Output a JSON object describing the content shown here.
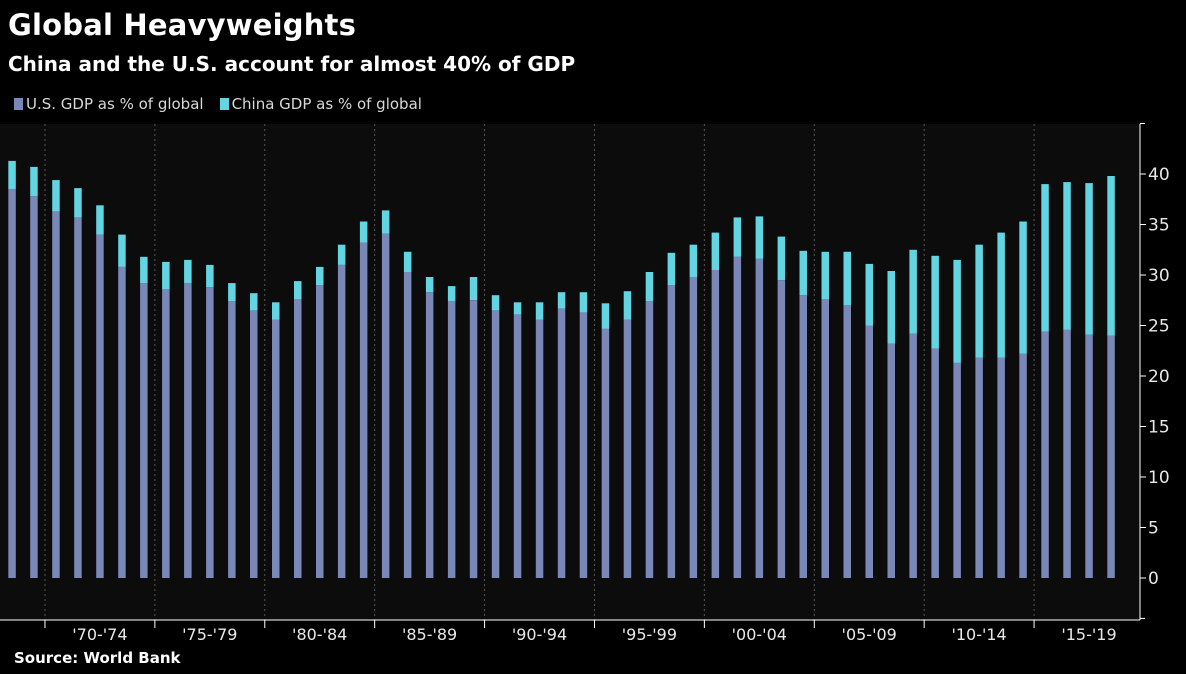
{
  "header": {
    "title": "Global Heavyweights",
    "subtitle": "China and the U.S. account for almost 40% of GDP"
  },
  "legend": [
    {
      "label": "U.S. GDP as % of global",
      "color": "#7a88b8"
    },
    {
      "label": "China GDP as % of global",
      "color": "#63d4e2"
    }
  ],
  "footer": {
    "source": "Source: World Bank"
  },
  "colors": {
    "background": "#0c0c0c",
    "us": "#7a88b8",
    "china": "#63d4e2",
    "grid": "#555555"
  },
  "chart_data": {
    "type": "bar",
    "stacked": true,
    "categories": [
      1968,
      1969,
      1970,
      1971,
      1972,
      1973,
      1974,
      1975,
      1976,
      1977,
      1978,
      1979,
      1980,
      1981,
      1982,
      1983,
      1984,
      1985,
      1986,
      1987,
      1988,
      1989,
      1990,
      1991,
      1992,
      1993,
      1994,
      1995,
      1996,
      1997,
      1998,
      1999,
      2000,
      2001,
      2002,
      2003,
      2004,
      2005,
      2006,
      2007,
      2008,
      2009,
      2010,
      2011,
      2012,
      2013,
      2014,
      2015,
      2016,
      2017,
      2018
    ],
    "series": [
      {
        "name": "U.S. GDP as % of global",
        "values": [
          38.5,
          37.8,
          36.3,
          35.7,
          34.0,
          30.8,
          29.2,
          28.6,
          29.2,
          28.8,
          27.4,
          26.5,
          25.6,
          27.6,
          29.0,
          31.0,
          33.2,
          34.1,
          30.3,
          28.3,
          27.4,
          27.5,
          26.5,
          26.1,
          25.6,
          26.7,
          26.3,
          24.7,
          25.6,
          27.4,
          29.0,
          29.8,
          30.5,
          31.8,
          31.6,
          29.5,
          28.0,
          27.6,
          27.0,
          25.0,
          23.2,
          24.2,
          22.7,
          21.3,
          21.8,
          21.8,
          22.2,
          24.4,
          24.6,
          24.1,
          24.0
        ]
      },
      {
        "name": "China GDP as % of global",
        "values": [
          2.8,
          2.9,
          3.1,
          2.9,
          2.9,
          3.2,
          2.6,
          2.7,
          2.3,
          2.2,
          1.8,
          1.7,
          1.7,
          1.8,
          1.8,
          2.0,
          2.1,
          2.3,
          2.0,
          1.5,
          1.5,
          2.3,
          1.5,
          1.2,
          1.7,
          1.6,
          2.0,
          2.5,
          2.8,
          2.9,
          3.2,
          3.2,
          3.7,
          3.9,
          4.2,
          4.3,
          4.4,
          4.7,
          5.3,
          6.1,
          7.2,
          8.3,
          9.2,
          10.2,
          11.2,
          12.4,
          13.1,
          14.6,
          14.6,
          15.0,
          15.8
        ]
      }
    ],
    "ylim": [
      -4,
      45
    ],
    "yticks": [
      0,
      5,
      10,
      15,
      20,
      25,
      30,
      35,
      40
    ],
    "xtick_labels": [
      "'70-'74",
      "'75-'79",
      "'80-'84",
      "'85-'89",
      "'90-'94",
      "'95-'99",
      "'00-'04",
      "'05-'09",
      "'10-'14",
      "'15-'19"
    ],
    "legend_position": "top-left",
    "grid": "dotted vertical"
  }
}
